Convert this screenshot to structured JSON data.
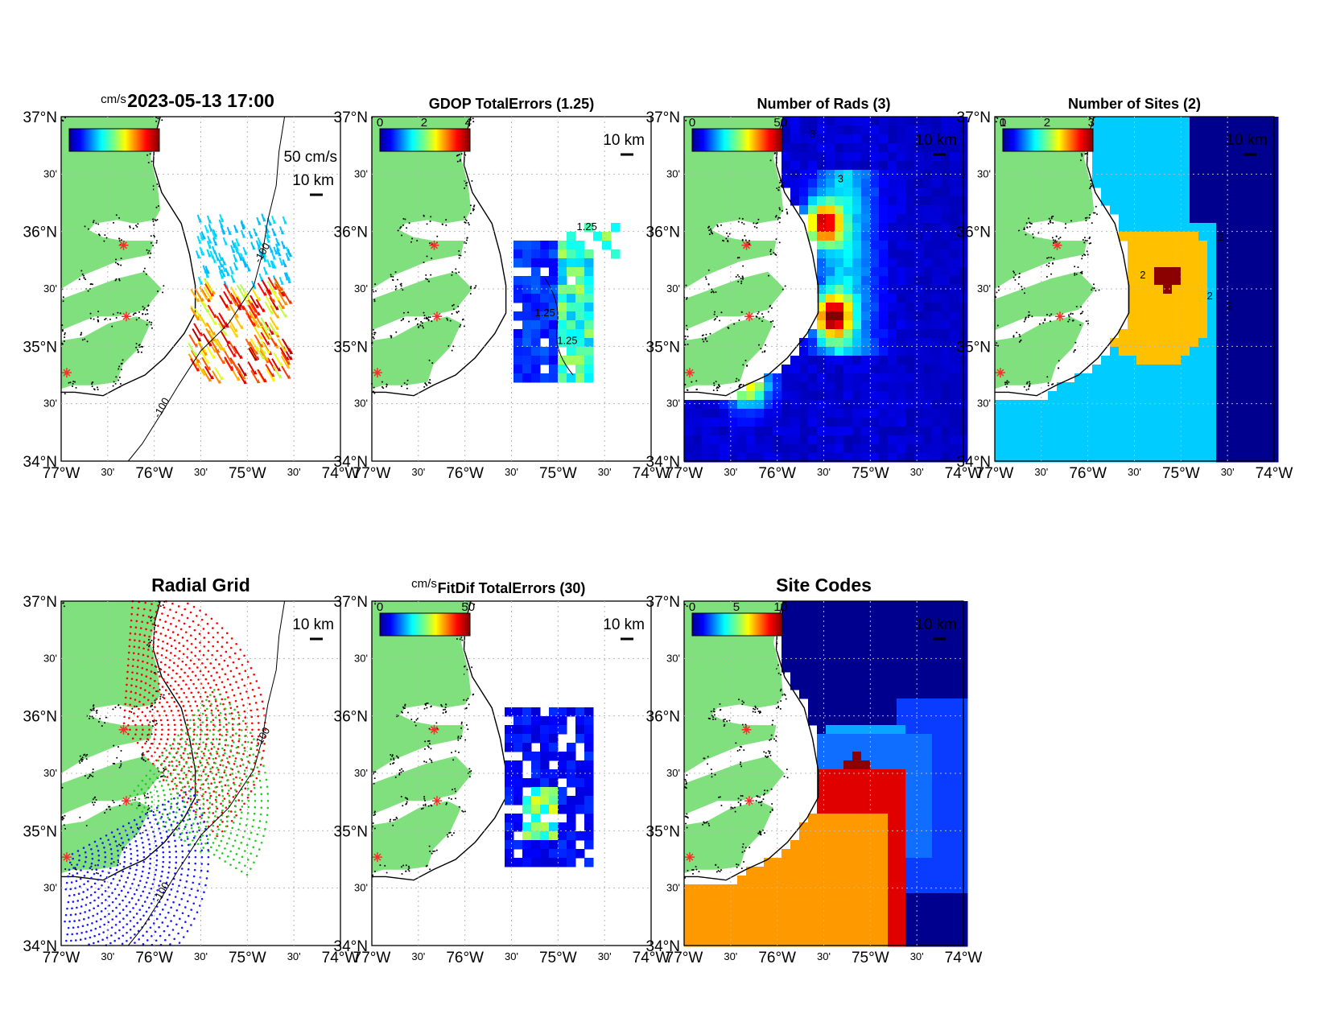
{
  "colors": {
    "land": "#7fe07d",
    "ocean": "#ffffff",
    "coast": "#000000",
    "site_marker": "#ff2a2a",
    "grid_site_red": "#ff0000",
    "grid_site_green": "#22cc22",
    "grid_site_blue": "#1a1aff",
    "sites_one": "#00ccff",
    "sites_two": "#ffc000",
    "sites_three": "#8b0000",
    "deep_blue": "#00008f"
  },
  "axes": {
    "lat_labels": [
      "37°N",
      "30'",
      "36°N",
      "30'",
      "35°N",
      "30'",
      "34°N"
    ],
    "lon_labels": [
      "77°W",
      "30'",
      "76°W",
      "30'",
      "75°W",
      "30'",
      "74°W"
    ],
    "lat_range": [
      34,
      37
    ],
    "lon_range": [
      -77,
      -74
    ]
  },
  "sites": [
    {
      "lon": -76.33,
      "lat": 35.88
    },
    {
      "lon": -76.3,
      "lat": 35.26
    },
    {
      "lon": -76.94,
      "lat": 34.77
    }
  ],
  "panels": [
    {
      "id": "totals",
      "title": "2023-05-13 17:00",
      "colorbar_unit": "cm/s",
      "colorbar_ticks": [],
      "scale_label": "10 km",
      "vector_scale_label": "50 cm/s",
      "isobath_labels": [
        "-100",
        "-100"
      ]
    },
    {
      "id": "gdop",
      "title": "GDOP TotalErrors (1.25)",
      "colorbar_ticks": [
        "0",
        "2",
        "4"
      ],
      "scale_label": "10 km",
      "contour_labels": [
        "1.25",
        "1.25",
        "1.25"
      ]
    },
    {
      "id": "num-rads",
      "title": "Number of Rads (3)",
      "colorbar_ticks": [
        "0",
        "50"
      ],
      "scale_label": "10 km",
      "contour_labels": [
        "3",
        "3"
      ]
    },
    {
      "id": "num-sites",
      "title": "Number of Sites (2)",
      "colorbar_ticks": [
        "1",
        "2",
        "3"
      ],
      "colorbar_lead": "0",
      "scale_label": "10 km",
      "contour_labels": [
        "2",
        "2",
        "2",
        "2"
      ]
    },
    {
      "id": "radial-grid",
      "title": "Radial Grid",
      "scale_label": "10 km",
      "isobath_labels": [
        "-100",
        "-100"
      ]
    },
    {
      "id": "fitdif",
      "title": "FitDif TotalErrors (30)",
      "colorbar_unit": "cm/s",
      "colorbar_ticks": [
        "0",
        "50"
      ],
      "scale_label": "10 km"
    },
    {
      "id": "site-codes",
      "title": "Site Codes",
      "colorbar_ticks": [
        "0",
        "5",
        "10"
      ],
      "scale_label": "10 km"
    }
  ]
}
